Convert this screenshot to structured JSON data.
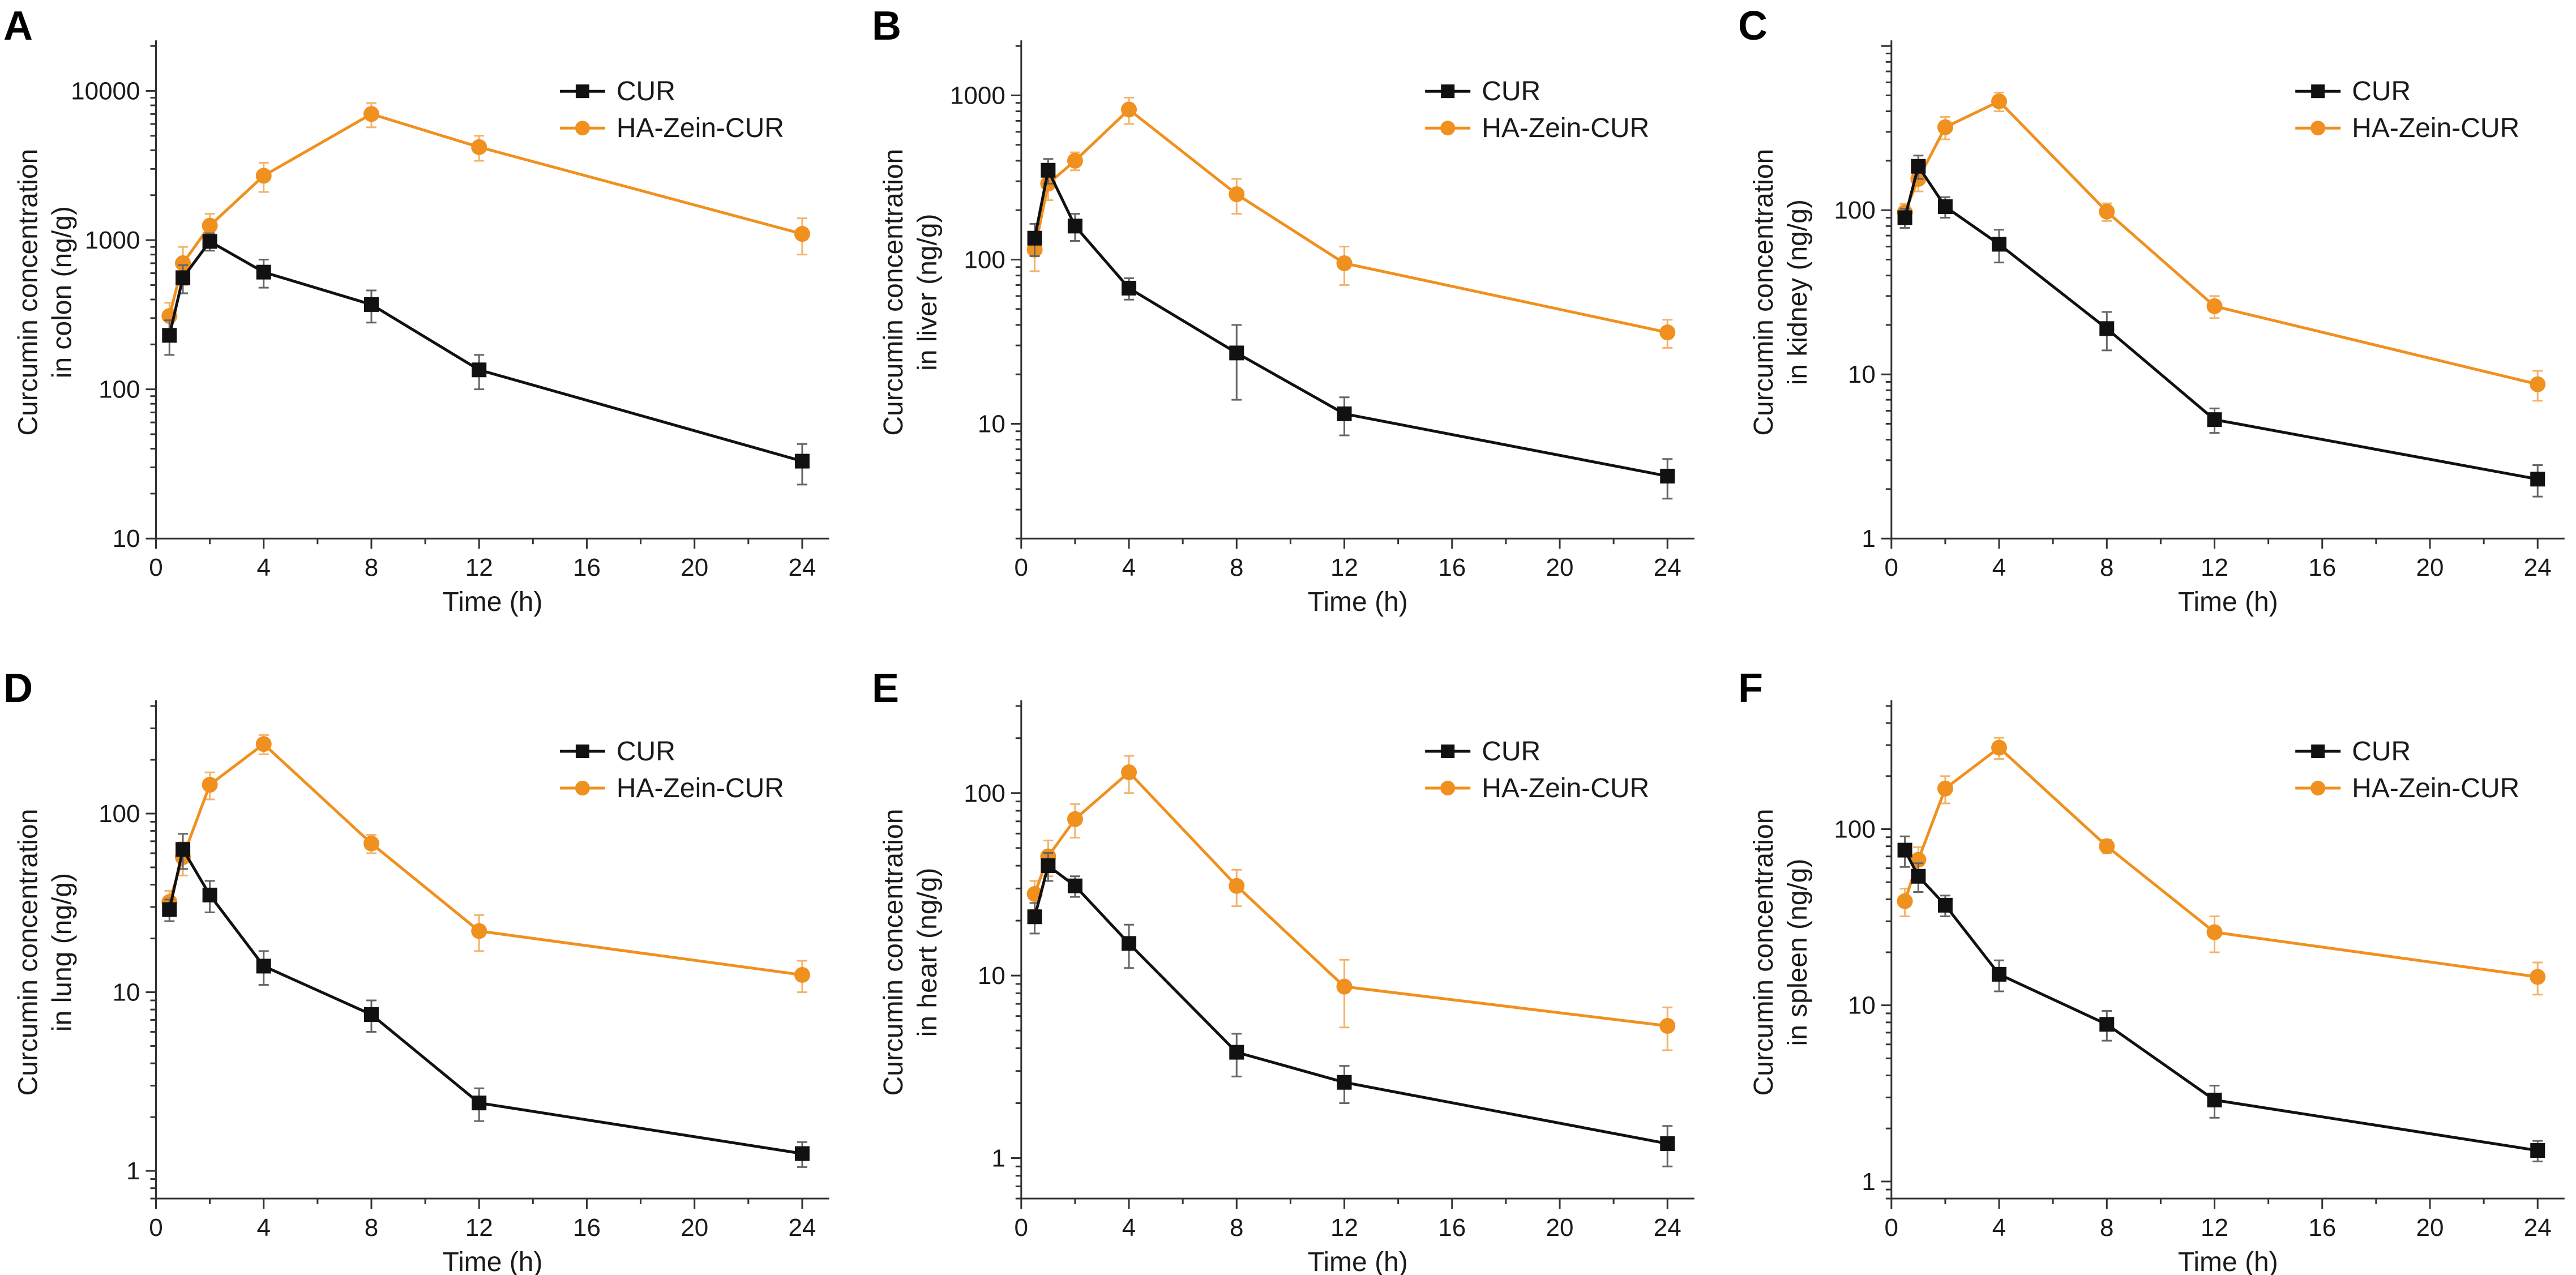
{
  "colors": {
    "CUR": "#111111",
    "HA-Zein-CUR": "#f0901f",
    "CUR_err": "#666666",
    "HA-Zein-CUR_err": "#f2b36a"
  },
  "chart_data": [
    {
      "panel": "A",
      "type": "line",
      "yscale": "log",
      "title": "",
      "xlabel": "Time (h)",
      "ylabel": [
        "Curcumin concentration",
        "in colon (ng/g)"
      ],
      "xlim": [
        0,
        25
      ],
      "xticks": [
        0,
        4,
        8,
        12,
        16,
        20,
        24
      ],
      "ylim": [
        10,
        20000
      ],
      "yticks": [
        10,
        100,
        1000,
        10000
      ],
      "ytick_labels": [
        "10",
        "100",
        "1000",
        "10000"
      ],
      "legend": [
        "CUR",
        "HA-Zein-CUR"
      ],
      "series": [
        {
          "name": "CUR",
          "marker": "square",
          "x": [
            0.5,
            1,
            2,
            4,
            8,
            12,
            24
          ],
          "y": [
            230,
            560,
            980,
            610,
            370,
            135,
            33
          ],
          "err": [
            60,
            120,
            130,
            130,
            90,
            35,
            10
          ]
        },
        {
          "name": "HA-Zein-CUR",
          "marker": "circle",
          "x": [
            0.5,
            1,
            2,
            4,
            8,
            12,
            24
          ],
          "y": [
            310,
            700,
            1250,
            2700,
            7000,
            4200,
            1100
          ],
          "err": [
            70,
            200,
            250,
            600,
            1300,
            800,
            300
          ]
        }
      ]
    },
    {
      "panel": "B",
      "type": "line",
      "yscale": "log",
      "title": "",
      "xlabel": "Time (h)",
      "ylabel": [
        "Curcumin concentration",
        "in liver (ng/g)"
      ],
      "xlim": [
        0,
        25
      ],
      "xticks": [
        0,
        4,
        8,
        12,
        16,
        20,
        24
      ],
      "ylim": [
        2,
        2000
      ],
      "yticks": [
        10,
        100,
        1000
      ],
      "ytick_labels": [
        "10",
        "100",
        "1000"
      ],
      "legend": [
        "CUR",
        "HA-Zein-CUR"
      ],
      "series": [
        {
          "name": "CUR",
          "marker": "square",
          "x": [
            0.5,
            1,
            2,
            4,
            8,
            12,
            24
          ],
          "y": [
            135,
            350,
            160,
            67,
            27,
            11.5,
            4.8
          ],
          "err": [
            30,
            60,
            30,
            10,
            13,
            3,
            1.3
          ]
        },
        {
          "name": "HA-Zein-CUR",
          "marker": "circle",
          "x": [
            0.5,
            1,
            2,
            4,
            8,
            12,
            24
          ],
          "y": [
            115,
            290,
            400,
            820,
            250,
            95,
            36
          ],
          "err": [
            30,
            60,
            50,
            150,
            60,
            25,
            7
          ]
        }
      ]
    },
    {
      "panel": "C",
      "type": "line",
      "yscale": "log",
      "title": "",
      "xlabel": "Time (h)",
      "ylabel": [
        "Curcumin concentration",
        "in kidney (ng/g)"
      ],
      "xlim": [
        0,
        25
      ],
      "xticks": [
        0,
        4,
        8,
        12,
        16,
        20,
        24
      ],
      "ylim": [
        1,
        1000
      ],
      "yticks": [
        1,
        10,
        100
      ],
      "ytick_labels": [
        "1",
        "10",
        "100"
      ],
      "legend": [
        "CUR",
        "HA-Zein-CUR"
      ],
      "series": [
        {
          "name": "CUR",
          "marker": "square",
          "x": [
            0.5,
            1,
            2,
            4,
            8,
            12,
            24
          ],
          "y": [
            90,
            185,
            105,
            62,
            19,
            5.3,
            2.3
          ],
          "err": [
            12,
            30,
            15,
            14,
            5,
            0.9,
            0.5
          ]
        },
        {
          "name": "HA-Zein-CUR",
          "marker": "circle",
          "x": [
            0.5,
            1,
            2,
            4,
            8,
            12,
            24
          ],
          "y": [
            97,
            155,
            320,
            460,
            98,
            26,
            8.7
          ],
          "err": [
            12,
            25,
            50,
            60,
            12,
            4,
            1.8
          ]
        }
      ]
    },
    {
      "panel": "D",
      "type": "line",
      "yscale": "log",
      "title": "",
      "xlabel": "Time (h)",
      "ylabel": [
        "Curcumin concentration",
        "in lung (ng/g)"
      ],
      "xlim": [
        0,
        25
      ],
      "xticks": [
        0,
        4,
        8,
        12,
        16,
        20,
        24
      ],
      "ylim": [
        0.7,
        400
      ],
      "yticks": [
        1,
        10,
        100
      ],
      "ytick_labels": [
        "1",
        "10",
        "100"
      ],
      "legend": [
        "CUR",
        "HA-Zein-CUR"
      ],
      "series": [
        {
          "name": "CUR",
          "marker": "square",
          "x": [
            0.5,
            1,
            2,
            4,
            8,
            12,
            24
          ],
          "y": [
            29,
            63,
            35,
            14,
            7.5,
            2.4,
            1.25
          ],
          "err": [
            4,
            14,
            7,
            3,
            1.5,
            0.5,
            0.2
          ]
        },
        {
          "name": "HA-Zein-CUR",
          "marker": "circle",
          "x": [
            0.5,
            1,
            2,
            4,
            8,
            12,
            24
          ],
          "y": [
            32,
            57,
            145,
            245,
            68,
            22,
            12.5
          ],
          "err": [
            5,
            12,
            25,
            30,
            8,
            5,
            2.5
          ]
        }
      ]
    },
    {
      "panel": "E",
      "type": "line",
      "yscale": "log",
      "title": "",
      "xlabel": "Time (h)",
      "ylabel": [
        "Curcumin concentration",
        "in heart (ng/g)"
      ],
      "xlim": [
        0,
        25
      ],
      "xticks": [
        0,
        4,
        8,
        12,
        16,
        20,
        24
      ],
      "ylim": [
        0.6,
        300
      ],
      "yticks": [
        1,
        10,
        100
      ],
      "ytick_labels": [
        "1",
        "10",
        "100"
      ],
      "legend": [
        "CUR",
        "HA-Zein-CUR"
      ],
      "series": [
        {
          "name": "CUR",
          "marker": "square",
          "x": [
            0.5,
            1,
            2,
            4,
            8,
            12,
            24
          ],
          "y": [
            21,
            40,
            31,
            15,
            3.8,
            2.6,
            1.2
          ],
          "err": [
            4,
            7,
            4,
            4,
            1,
            0.6,
            0.3
          ]
        },
        {
          "name": "HA-Zein-CUR",
          "marker": "circle",
          "x": [
            0.5,
            1,
            2,
            4,
            8,
            12,
            24
          ],
          "y": [
            28,
            45,
            72,
            130,
            31,
            8.7,
            5.3
          ],
          "err": [
            5,
            10,
            15,
            30,
            7,
            3.5,
            1.4
          ]
        }
      ]
    },
    {
      "panel": "F",
      "type": "line",
      "yscale": "log",
      "title": "",
      "xlabel": "Time (h)",
      "ylabel": [
        "Curcumin concentration",
        "in spleen (ng/g)"
      ],
      "xlim": [
        0,
        25
      ],
      "xticks": [
        0,
        4,
        8,
        12,
        16,
        20,
        24
      ],
      "ylim": [
        0.8,
        500
      ],
      "yticks": [
        1,
        10,
        100
      ],
      "ytick_labels": [
        "1",
        "10",
        "100"
      ],
      "legend": [
        "CUR",
        "HA-Zein-CUR"
      ],
      "series": [
        {
          "name": "CUR",
          "marker": "square",
          "x": [
            0.5,
            1,
            2,
            4,
            8,
            12,
            24
          ],
          "y": [
            76,
            54,
            37,
            15,
            7.8,
            2.9,
            1.5
          ],
          "err": [
            15,
            10,
            5,
            3,
            1.5,
            0.6,
            0.2
          ]
        },
        {
          "name": "HA-Zein-CUR",
          "marker": "circle",
          "x": [
            0.5,
            1,
            2,
            4,
            8,
            12,
            24
          ],
          "y": [
            39,
            67,
            170,
            290,
            80,
            26,
            14.5
          ],
          "err": [
            7,
            12,
            30,
            40,
            7,
            6,
            3
          ]
        }
      ]
    }
  ]
}
